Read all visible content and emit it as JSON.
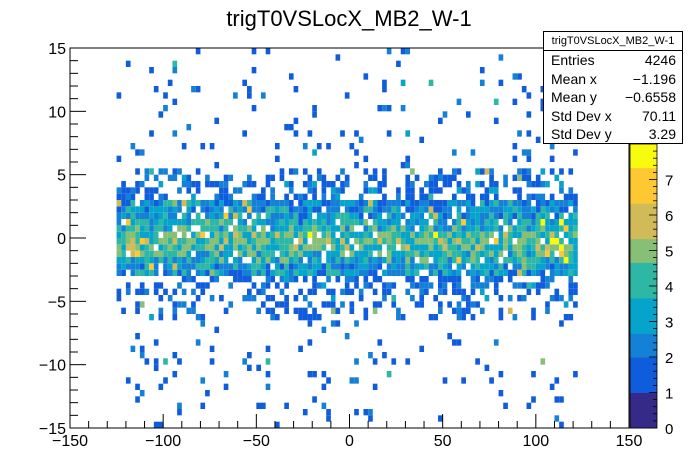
{
  "chart_data": {
    "type": "heatmap",
    "title": "trigT0VSLocX_MB2_W-1",
    "xlabel": "",
    "ylabel": "",
    "xlim": [
      -150,
      150
    ],
    "ylim": [
      -15,
      15
    ],
    "x_ticks": [
      "−150",
      "−100",
      "−50",
      "0",
      "50",
      "100",
      "150"
    ],
    "y_ticks": [
      "15",
      "10",
      "5",
      "0",
      "−5",
      "−10",
      "−15"
    ],
    "x_bin_width": 2.5,
    "y_bin_width": 0.5,
    "x_data_range": [
      -125,
      122
    ],
    "color_scale": {
      "min": 0,
      "max": 8,
      "tick_labels": [
        "0",
        "1",
        "2",
        "3",
        "4",
        "5",
        "6",
        "7"
      ],
      "colors": [
        "#352a87",
        "#0f5cdd",
        "#1481d6",
        "#06a4ca",
        "#2eb7a4",
        "#87bf77",
        "#d1bb59",
        "#fec832",
        "#f9fb0e"
      ]
    },
    "note": "Bin contents estimated from colors; distribution concentrated around y in [-3, 3], sparse tails to ±15."
  },
  "stats": {
    "title": "trigT0VSLocX_MB2_W-1",
    "rows": [
      {
        "label": "Entries",
        "value": "4246"
      },
      {
        "label": "Mean x",
        "value": "−1.196"
      },
      {
        "label": "Mean y",
        "value": "−0.6558"
      },
      {
        "label": "Std Dev x",
        "value": "70.11"
      },
      {
        "label": "Std Dev y",
        "value": "3.29"
      }
    ]
  }
}
